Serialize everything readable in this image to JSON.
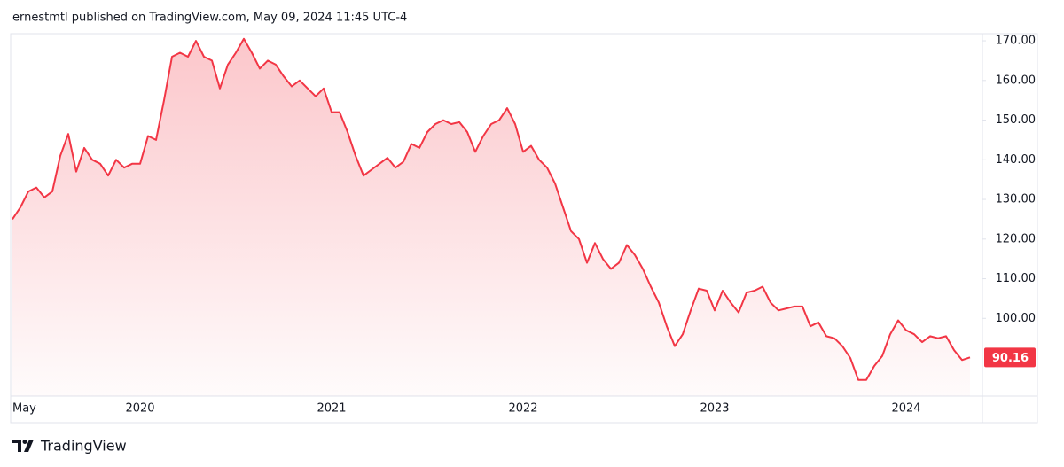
{
  "header": {
    "title": "ernestmtl published on TradingView.com, May 09, 2024 11:45 UTC-4"
  },
  "footer": {
    "brand": "TradingView"
  },
  "chart_data": {
    "type": "area",
    "color": "#f23645",
    "grid": false,
    "categories": [
      "May",
      null,
      null,
      null,
      null,
      null,
      null,
      null,
      null,
      null,
      null,
      null,
      null,
      null,
      null,
      null,
      "2020",
      null,
      null,
      null,
      null,
      null,
      null,
      null,
      null,
      null,
      null,
      null,
      null,
      null,
      null,
      null,
      null,
      null,
      null,
      null,
      null,
      null,
      null,
      null,
      "2021",
      null,
      null,
      null,
      null,
      null,
      null,
      null,
      null,
      null,
      null,
      null,
      null,
      null,
      null,
      null,
      null,
      null,
      null,
      null,
      null,
      null,
      null,
      null,
      "2022",
      null,
      null,
      null,
      null,
      null,
      null,
      null,
      null,
      null,
      null,
      null,
      null,
      null,
      null,
      null,
      null,
      null,
      null,
      null,
      null,
      null,
      null,
      null,
      "2023",
      null,
      null,
      null,
      null,
      null,
      null,
      null,
      null,
      null,
      null,
      null,
      null,
      null,
      null,
      null,
      null,
      null,
      null,
      null,
      null,
      null,
      null,
      null,
      "2024",
      null,
      null,
      null,
      null,
      null,
      null,
      null,
      null
    ],
    "values": [
      125,
      128,
      132,
      133,
      130.5,
      132,
      141,
      146.5,
      137,
      143,
      140,
      139,
      136,
      140,
      138,
      139,
      139,
      146,
      145,
      155,
      166,
      167,
      166,
      170,
      166,
      165,
      158,
      164,
      167,
      170.5,
      167,
      163,
      165,
      164,
      161,
      158.5,
      160,
      158,
      156,
      158,
      152,
      152,
      147,
      141,
      136,
      137.5,
      139,
      140.5,
      138,
      139.5,
      144,
      143,
      147,
      149,
      150,
      149,
      149.5,
      147,
      142,
      146,
      149,
      150,
      153,
      149,
      142,
      143.5,
      140,
      138,
      134,
      128,
      122,
      120,
      114,
      119,
      115,
      112.5,
      114,
      118.5,
      116,
      112.5,
      108,
      104,
      98,
      93,
      96,
      102,
      107.5,
      107,
      102,
      107,
      104,
      101.5,
      106.5,
      107,
      108,
      104,
      102,
      102.5,
      103,
      103,
      98,
      99,
      95.5,
      95,
      93,
      90,
      84.5,
      84.5,
      88,
      90.5,
      96,
      99.5,
      97,
      96,
      94,
      95.5,
      95,
      95.5,
      92,
      89.5,
      90.16
    ],
    "ylim": [
      80.4,
      171.8
    ],
    "yticks": [
      {
        "value": 100,
        "label": "100.00"
      },
      {
        "value": 110,
        "label": "110.00"
      },
      {
        "value": 120,
        "label": "120.00"
      },
      {
        "value": 130,
        "label": "130.00"
      },
      {
        "value": 140,
        "label": "140.00"
      },
      {
        "value": 150,
        "label": "150.00"
      },
      {
        "value": 160,
        "label": "160.00"
      },
      {
        "value": 170,
        "label": "170.00"
      }
    ]
  }
}
